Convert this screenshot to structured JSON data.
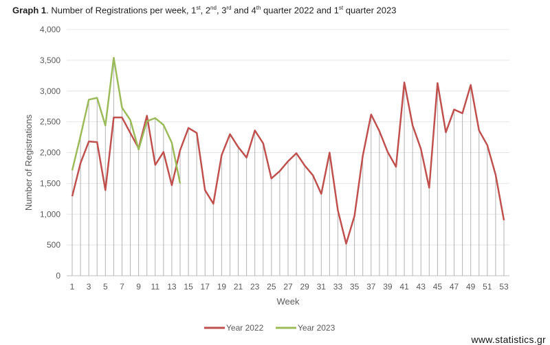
{
  "title": {
    "graph_label": "Graph 1",
    "q1": "1",
    "q1_sup": "st",
    "q2": "2",
    "q2_sup": "nd",
    "q3": "3",
    "q3_sup": "rd",
    "q4": "4",
    "q4_sup": "th",
    "q1b": "1",
    "q1b_sup": "st",
    "t1": ". Number of Registrations per week, ",
    "t2": ", ",
    "t3": ", ",
    "t4": "and ",
    "t5": " quarter 2022 and ",
    "t6": " quarter 2023"
  },
  "watermark": "www.statistics.gr",
  "chart_data": {
    "type": "line",
    "title": "Graph 1. Number of Registrations per week, 1st, 2nd, 3rd and 4th quarter 2022 and 1st quarter 2023",
    "xlabel": "Week",
    "ylabel": "Number of Registrations",
    "ylim": [
      0,
      4000
    ],
    "yticks": [
      0,
      500,
      1000,
      1500,
      2000,
      2500,
      3000,
      3500,
      4000
    ],
    "ytick_labels": [
      "0",
      "500",
      "1,000",
      "1,500",
      "2,000",
      "2,500",
      "3,000",
      "3,500",
      "4,000"
    ],
    "xlim": [
      1,
      53
    ],
    "xtick_labels": [
      "1",
      "3",
      "5",
      "7",
      "9",
      "11",
      "13",
      "15",
      "17",
      "19",
      "21",
      "23",
      "25",
      "27",
      "29",
      "31",
      "33",
      "35",
      "37",
      "39",
      "41",
      "43",
      "45",
      "47",
      "49",
      "51",
      "53"
    ],
    "drop_lines": true,
    "legend_position": "bottom",
    "series": [
      {
        "name": "Year 2022",
        "color": "#c0504d",
        "values": [
          1290,
          1830,
          2180,
          2170,
          1390,
          2570,
          2570,
          2320,
          2070,
          2600,
          1800,
          2010,
          1470,
          2040,
          2400,
          2320,
          1390,
          1170,
          1960,
          2300,
          2090,
          1920,
          2360,
          2150,
          1580,
          1700,
          1860,
          1990,
          1790,
          1630,
          1330,
          2000,
          1060,
          520,
          970,
          1950,
          2620,
          2350,
          2010,
          1770,
          3140,
          2440,
          2060,
          1430,
          3130,
          2330,
          2700,
          2640,
          3100,
          2360,
          2120,
          1640,
          900
        ]
      },
      {
        "name": "Year 2023",
        "color": "#9bbb59",
        "values": [
          1710,
          2270,
          2860,
          2890,
          2440,
          3540,
          2730,
          2530,
          2050,
          2510,
          2560,
          2450,
          2160,
          1500
        ]
      }
    ]
  }
}
